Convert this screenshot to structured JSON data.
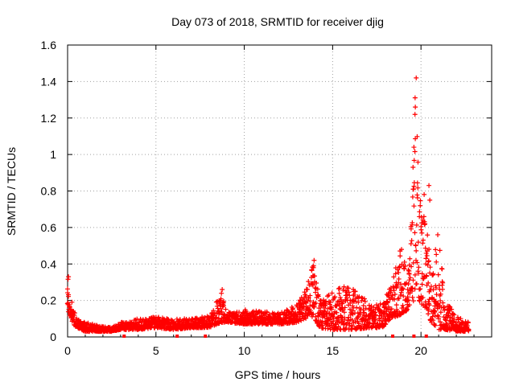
{
  "chart_data": {
    "type": "scatter",
    "title": "Day 073 of 2018, SRMTID for receiver djig",
    "xlabel": "GPS time / hours",
    "ylabel": "SRMTID / TECUs",
    "xlim": [
      0,
      24
    ],
    "ylim": [
      0,
      1.6
    ],
    "x_ticks": [
      0,
      5,
      10,
      15,
      20
    ],
    "x_tick_labels": [
      "0",
      "5",
      "10",
      "15",
      "20"
    ],
    "y_ticks": [
      0,
      0.2,
      0.4,
      0.6,
      0.8,
      1.0,
      1.2,
      1.4,
      1.6
    ],
    "y_tick_labels": [
      "0",
      "0.2",
      "0.4",
      "0.6",
      "0.8",
      "1",
      "1.2",
      "1.4",
      "1.6"
    ],
    "grid": true,
    "marker": "plus",
    "marker_color": "#ff0000",
    "envelope_note": "approximate base/upper envelope of the dense SRMTID scatter",
    "envelope": [
      {
        "x": 0.0,
        "lo": 0.15,
        "hi": 0.33
      },
      {
        "x": 0.25,
        "lo": 0.08,
        "hi": 0.2
      },
      {
        "x": 0.5,
        "lo": 0.05,
        "hi": 0.1
      },
      {
        "x": 1.0,
        "lo": 0.03,
        "hi": 0.08
      },
      {
        "x": 1.5,
        "lo": 0.03,
        "hi": 0.07
      },
      {
        "x": 2.0,
        "lo": 0.03,
        "hi": 0.06
      },
      {
        "x": 2.5,
        "lo": 0.03,
        "hi": 0.05
      },
      {
        "x": 3.0,
        "lo": 0.04,
        "hi": 0.08
      },
      {
        "x": 3.5,
        "lo": 0.04,
        "hi": 0.09
      },
      {
        "x": 4.0,
        "lo": 0.04,
        "hi": 0.1
      },
      {
        "x": 5.0,
        "lo": 0.05,
        "hi": 0.11
      },
      {
        "x": 6.0,
        "lo": 0.04,
        "hi": 0.1
      },
      {
        "x": 7.0,
        "lo": 0.05,
        "hi": 0.1
      },
      {
        "x": 8.0,
        "lo": 0.05,
        "hi": 0.12
      },
      {
        "x": 8.7,
        "lo": 0.08,
        "hi": 0.25
      },
      {
        "x": 9.0,
        "lo": 0.08,
        "hi": 0.14
      },
      {
        "x": 10.0,
        "lo": 0.07,
        "hi": 0.15
      },
      {
        "x": 11.0,
        "lo": 0.07,
        "hi": 0.14
      },
      {
        "x": 12.0,
        "lo": 0.07,
        "hi": 0.13
      },
      {
        "x": 13.0,
        "lo": 0.08,
        "hi": 0.18
      },
      {
        "x": 13.5,
        "lo": 0.1,
        "hi": 0.26
      },
      {
        "x": 13.9,
        "lo": 0.1,
        "hi": 0.41
      },
      {
        "x": 14.3,
        "lo": 0.05,
        "hi": 0.22
      },
      {
        "x": 15.0,
        "lo": 0.04,
        "hi": 0.25
      },
      {
        "x": 15.6,
        "lo": 0.04,
        "hi": 0.28
      },
      {
        "x": 16.2,
        "lo": 0.04,
        "hi": 0.26
      },
      {
        "x": 17.0,
        "lo": 0.05,
        "hi": 0.2
      },
      {
        "x": 17.8,
        "lo": 0.05,
        "hi": 0.18
      },
      {
        "x": 18.3,
        "lo": 0.1,
        "hi": 0.28
      },
      {
        "x": 18.8,
        "lo": 0.12,
        "hi": 0.48
      },
      {
        "x": 19.3,
        "lo": 0.15,
        "hi": 0.38
      },
      {
        "x": 19.6,
        "lo": 0.2,
        "hi": 1.03
      },
      {
        "x": 19.7,
        "lo": 0.3,
        "hi": 1.42
      },
      {
        "x": 19.9,
        "lo": 0.2,
        "hi": 0.72
      },
      {
        "x": 20.2,
        "lo": 0.15,
        "hi": 0.83
      },
      {
        "x": 20.6,
        "lo": 0.08,
        "hi": 0.4
      },
      {
        "x": 21.0,
        "lo": 0.04,
        "hi": 0.56
      },
      {
        "x": 21.4,
        "lo": 0.04,
        "hi": 0.2
      },
      {
        "x": 22.0,
        "lo": 0.03,
        "hi": 0.12
      },
      {
        "x": 22.7,
        "lo": 0.03,
        "hi": 0.08
      }
    ],
    "notable_points": [
      {
        "x": 19.73,
        "y": 1.42
      },
      {
        "x": 19.68,
        "y": 1.26
      },
      {
        "x": 19.66,
        "y": 1.22
      },
      {
        "x": 19.6,
        "y": 1.04
      },
      {
        "x": 19.55,
        "y": 0.93
      },
      {
        "x": 19.58,
        "y": 0.81
      },
      {
        "x": 20.45,
        "y": 0.83
      },
      {
        "x": 20.5,
        "y": 0.75
      },
      {
        "x": 13.95,
        "y": 0.42
      },
      {
        "x": 13.92,
        "y": 0.38
      },
      {
        "x": 8.75,
        "y": 0.26
      },
      {
        "x": 0.05,
        "y": 0.33
      },
      {
        "x": 20.95,
        "y": 0.56
      },
      {
        "x": 18.9,
        "y": 0.48
      }
    ],
    "baseline_marks_x": [
      3.2,
      6.2,
      7.8,
      18.4,
      19.6,
      20.3
    ]
  }
}
